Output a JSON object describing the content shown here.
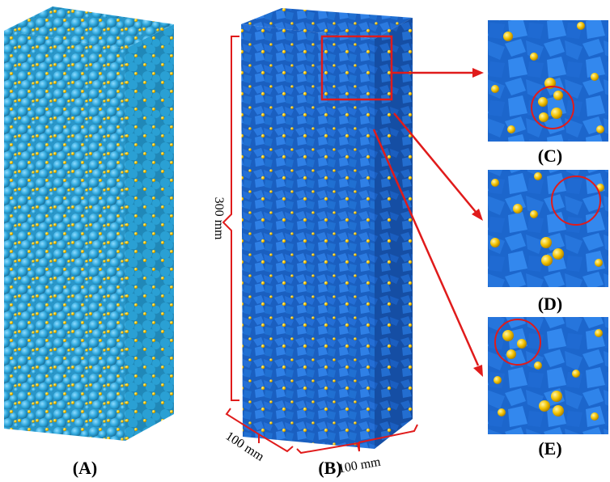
{
  "panels": {
    "a_label": "(A)",
    "b_label": "(B)",
    "c_label": "(C)",
    "d_label": "(D)",
    "e_label": "(E)"
  },
  "dimensions": {
    "height_label": "300 mm",
    "depth_label": "100 mm",
    "width_label": "100 mm"
  },
  "colors": {
    "sphere_blue": "#2fa8dd",
    "aggregate_blue": "#1f6fd6",
    "particle_yellow": "#f2c200",
    "annotation_red": "#e01b1b"
  }
}
